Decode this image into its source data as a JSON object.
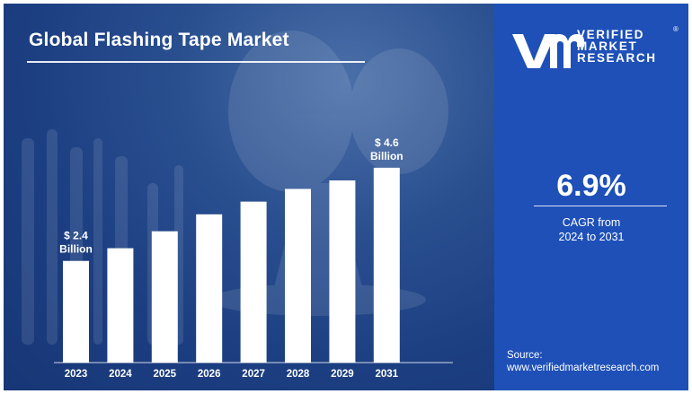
{
  "title": "Global Flashing Tape Market",
  "brand": {
    "lines": [
      "VERIFIED",
      "MARKET",
      "RESEARCH"
    ],
    "registered": "®"
  },
  "cagr": {
    "value": "6.9%",
    "label_line1": "CAGR from",
    "label_line2": "2024 to 2031"
  },
  "source": {
    "label": "Source:",
    "url": "www.verifiedmarketresearch.com"
  },
  "colors": {
    "bar": "#ffffff",
    "right_panel": "#1e50b8",
    "left_panel": "#1c3f82"
  },
  "chart_data": {
    "type": "bar",
    "categories": [
      "2023",
      "2024",
      "2025",
      "2026",
      "2027",
      "2028",
      "2029",
      "2031"
    ],
    "values": [
      2.4,
      2.7,
      3.1,
      3.5,
      3.8,
      4.1,
      4.3,
      4.6
    ],
    "unit": "Billion",
    "annotations": [
      {
        "category": "2023",
        "line1": "$ 2.4",
        "line2": "Billion"
      },
      {
        "category": "2031",
        "line1": "$ 4.6",
        "line2": "Billion"
      }
    ],
    "title": "Global Flashing Tape Market",
    "xlabel": "",
    "ylabel": "",
    "grid": false
  }
}
